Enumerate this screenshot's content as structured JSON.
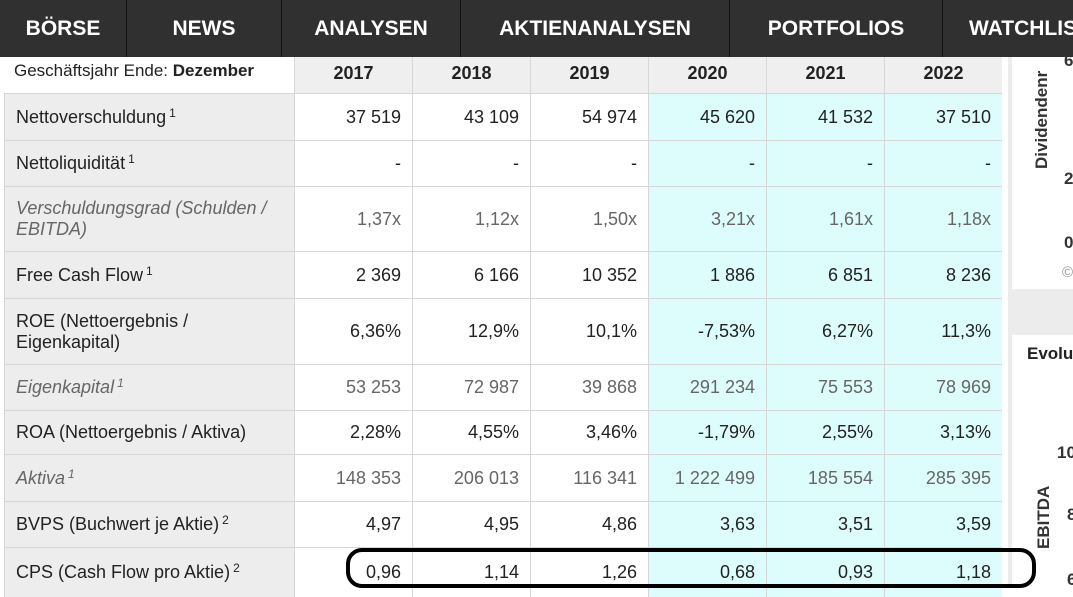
{
  "nav": [
    "BÖRSE",
    "NEWS",
    "ANALYSEN",
    "AKTIENANALYSEN",
    "PORTFOLIOS",
    "WATCHLIS"
  ],
  "header": {
    "fiscal_label": "Geschäftsjahr Ende:",
    "fiscal_value": "Dezember",
    "years": [
      "2017",
      "2018",
      "2019",
      "2020",
      "2021",
      "2022"
    ]
  },
  "rows": [
    {
      "label": "Nettoverschuldung",
      "sup": "1",
      "italic": false,
      "values": [
        "37 519",
        "43 109",
        "54 974",
        "45 620",
        "41 532",
        "37 510"
      ]
    },
    {
      "label": "Nettoliquidität",
      "sup": "1",
      "italic": false,
      "values": [
        "-",
        "-",
        "-",
        "-",
        "-",
        "-"
      ]
    },
    {
      "label": "Verschuldungsgrad (Schulden / EBITDA)",
      "sup": "",
      "italic": true,
      "values": [
        "1,37x",
        "1,12x",
        "1,50x",
        "3,21x",
        "1,61x",
        "1,18x"
      ]
    },
    {
      "label": "Free Cash Flow",
      "sup": "1",
      "italic": false,
      "values": [
        "2 369",
        "6 166",
        "10 352",
        "1 886",
        "6 851",
        "8 236"
      ]
    },
    {
      "label": "ROE (Nettoergebnis / Eigenkapital)",
      "sup": "",
      "italic": false,
      "values": [
        "6,36%",
        "12,9%",
        "10,1%",
        "-7,53%",
        "6,27%",
        "11,3%"
      ]
    },
    {
      "label": "Eigenkapital",
      "sup": "1",
      "italic": true,
      "values": [
        "53 253",
        "72 987",
        "39 868",
        "291 234",
        "75 553",
        "78 969"
      ]
    },
    {
      "label": "ROA (Nettoergebnis / Aktiva)",
      "sup": "",
      "italic": false,
      "values": [
        "2,28%",
        "4,55%",
        "3,46%",
        "-1,79%",
        "2,55%",
        "3,13%"
      ]
    },
    {
      "label": "Aktiva",
      "sup": "1",
      "italic": true,
      "values": [
        "148 353",
        "206 013",
        "116 341",
        "1 222 499",
        "185 554",
        "285 395"
      ]
    },
    {
      "label": "BVPS (Buchwert je Aktie)",
      "sup": "2",
      "italic": false,
      "values": [
        "4,97",
        "4,95",
        "4,86",
        "3,63",
        "3,51",
        "3,59"
      ]
    },
    {
      "label": "CPS (Cash Flow pro Aktie)",
      "sup": "2",
      "italic": false,
      "values": [
        "0,96",
        "1,14",
        "1,26",
        "0,68",
        "0,93",
        "1,18"
      ]
    }
  ],
  "right_panel": {
    "chart1_axis": "Dividendenr",
    "chart1_ticks": [
      "6",
      "2",
      "0"
    ],
    "copyright": "©",
    "chart2_title": "Evolu",
    "chart2_axis": "EBITDA",
    "chart2_ticks": [
      "10",
      "8",
      "6"
    ]
  },
  "colors": {
    "nav_bg": "#303030",
    "estimate_bg": "#ddfdfd",
    "label_bg": "#ededed"
  }
}
